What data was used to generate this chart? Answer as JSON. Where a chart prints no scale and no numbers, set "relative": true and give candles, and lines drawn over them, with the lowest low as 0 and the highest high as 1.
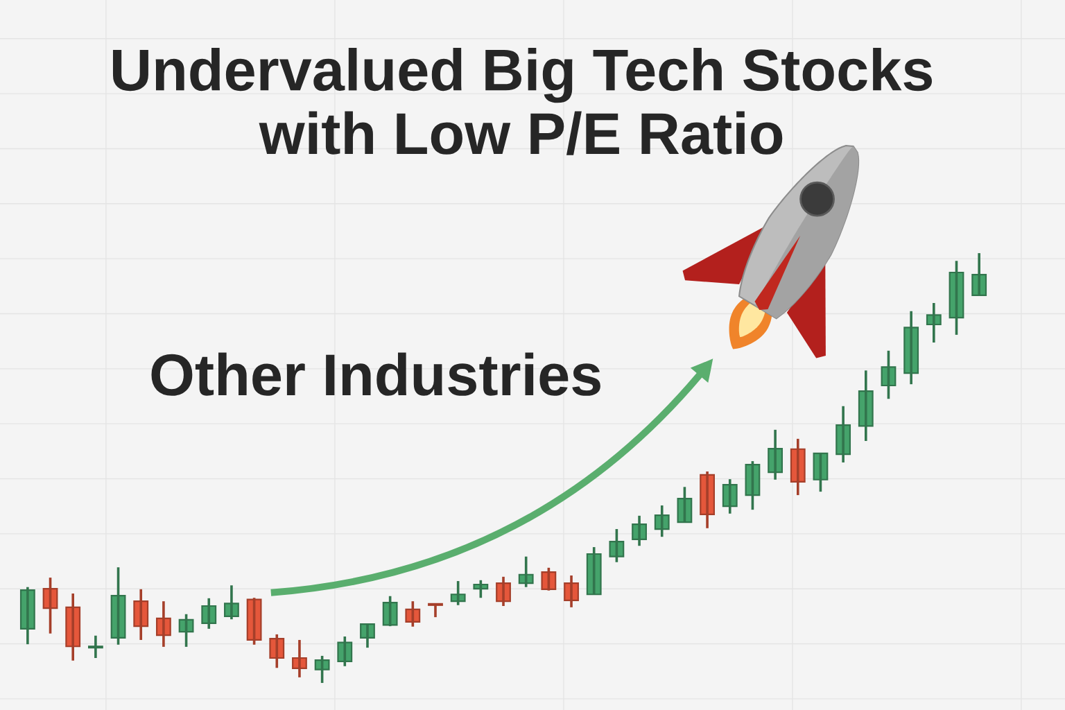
{
  "chart_data": {
    "type": "candlestick",
    "title": "Undervalued Big Tech Stocks\nwith Low P/E Ratio",
    "annotations": [
      "Other Industries"
    ],
    "categories": [
      null,
      null,
      null,
      null,
      null,
      null,
      null,
      null,
      null,
      null,
      null,
      null,
      null,
      null,
      null,
      null,
      null,
      null,
      null,
      null,
      null,
      null,
      null,
      null,
      null,
      null,
      null,
      null,
      null,
      null,
      null,
      null,
      null,
      null,
      null,
      null,
      null,
      null,
      null,
      null,
      null,
      null,
      null
    ],
    "ohlc": [
      [
        0.126,
        0.223,
        0.09,
        0.216
      ],
      [
        0.219,
        0.245,
        0.115,
        0.174
      ],
      [
        0.176,
        0.208,
        0.052,
        0.085
      ],
      [
        0.082,
        0.11,
        0.058,
        0.085
      ],
      [
        0.105,
        0.269,
        0.089,
        0.203
      ],
      [
        0.19,
        0.218,
        0.1,
        0.132
      ],
      [
        0.15,
        0.19,
        0.084,
        0.111
      ],
      [
        0.119,
        0.16,
        0.084,
        0.147
      ],
      [
        0.139,
        0.197,
        0.126,
        0.179
      ],
      [
        0.155,
        0.227,
        0.148,
        0.185
      ],
      [
        0.194,
        0.198,
        0.089,
        0.1
      ],
      [
        0.103,
        0.113,
        0.035,
        0.058
      ],
      [
        0.058,
        0.1,
        0.013,
        0.034
      ],
      [
        0.031,
        0.063,
        0,
        0.053
      ],
      [
        0.05,
        0.108,
        0.039,
        0.094
      ],
      [
        0.105,
        0.137,
        0.082,
        0.137
      ],
      [
        0.135,
        0.202,
        0.132,
        0.187
      ],
      [
        0.171,
        0.19,
        0.131,
        0.142
      ],
      [
        0.184,
        0.184,
        0.153,
        0.181
      ],
      [
        0.19,
        0.237,
        0.181,
        0.206
      ],
      [
        0.219,
        0.239,
        0.198,
        0.229
      ],
      [
        0.232,
        0.247,
        0.179,
        0.19
      ],
      [
        0.232,
        0.294,
        0.223,
        0.252
      ],
      [
        0.258,
        0.268,
        0.215,
        0.218
      ],
      [
        0.232,
        0.25,
        0.176,
        0.192
      ],
      [
        0.206,
        0.316,
        0.205,
        0.3
      ],
      [
        0.294,
        0.358,
        0.281,
        0.329
      ],
      [
        0.334,
        0.389,
        0.319,
        0.369
      ],
      [
        0.358,
        0.413,
        0.34,
        0.39
      ],
      [
        0.374,
        0.456,
        0.373,
        0.429
      ],
      [
        0.484,
        0.492,
        0.36,
        0.392
      ],
      [
        0.411,
        0.474,
        0.394,
        0.461
      ],
      [
        0.437,
        0.516,
        0.403,
        0.508
      ],
      [
        0.49,
        0.589,
        0.473,
        0.545
      ],
      [
        0.544,
        0.568,
        0.437,
        0.468
      ],
      [
        0.473,
        0.535,
        0.445,
        0.534
      ],
      [
        0.532,
        0.644,
        0.513,
        0.6
      ],
      [
        0.598,
        0.727,
        0.563,
        0.679
      ],
      [
        0.692,
        0.773,
        0.661,
        0.735
      ],
      [
        0.721,
        0.865,
        0.695,
        0.827
      ],
      [
        0.834,
        0.884,
        0.792,
        0.856
      ],
      [
        0.85,
        0.982,
        0.81,
        0.955
      ],
      [
        0.902,
        1,
        0.902,
        0.95
      ]
    ],
    "colors": [
      "#45a36b",
      "#e5573b",
      "#e5573b",
      "#45a36b",
      "#45a36b",
      "#e5573b",
      "#e5573b",
      "#45a36b",
      "#45a36b",
      "#45a36b",
      "#e5573b",
      "#e5573b",
      "#e5573b",
      "#45a36b",
      "#45a36b",
      "#45a36b",
      "#45a36b",
      "#e5573b",
      "#e5573b",
      "#45a36b",
      "#45a36b",
      "#e5573b",
      "#45a36b",
      "#e5573b",
      "#e5573b",
      "#45a36b",
      "#45a36b",
      "#45a36b",
      "#45a36b",
      "#45a36b",
      "#e5573b",
      "#45a36b",
      "#45a36b",
      "#45a36b",
      "#e5573b",
      "#45a36b",
      "#45a36b",
      "#45a36b",
      "#45a36b",
      "#45a36b",
      "#45a36b",
      "#45a36b",
      "#45a36b"
    ],
    "relative": true,
    "grid": true
  }
}
